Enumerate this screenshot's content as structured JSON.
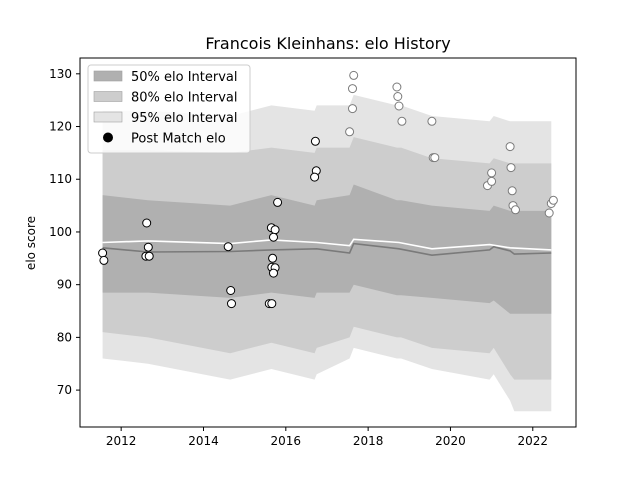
{
  "chart_data": {
    "type": "line",
    "title": "Francois Kleinhans: elo History",
    "xlabel": "",
    "ylabel": "elo score",
    "xlim": [
      2011.0,
      2023.05
    ],
    "ylim": [
      63,
      133
    ],
    "xticks": [
      2012,
      2014,
      2016,
      2018,
      2020,
      2022
    ],
    "yticks": [
      70,
      80,
      90,
      100,
      110,
      120,
      130
    ],
    "grid": false,
    "legend_position": "top-left",
    "legend": [
      {
        "label": "50% elo Interval",
        "kind": "band",
        "color": "#b0b0b0"
      },
      {
        "label": "80% elo Interval",
        "kind": "band",
        "color": "#cdcdcd"
      },
      {
        "label": "95% elo Interval",
        "kind": "band",
        "color": "#e4e4e4"
      },
      {
        "label": "Post Match elo",
        "kind": "marker",
        "color": "#000000"
      }
    ],
    "bands": {
      "x": [
        2011.55,
        2012.65,
        2014.65,
        2015.65,
        2016.7,
        2016.75,
        2017.55,
        2017.65,
        2018.7,
        2018.8,
        2019.55,
        2020.95,
        2021.05,
        2021.45,
        2021.55,
        2022.45
      ],
      "p95_low": [
        76,
        75,
        72,
        74,
        72,
        73,
        76,
        78,
        76,
        76,
        74,
        72,
        73,
        68,
        66,
        66
      ],
      "p80_low": [
        81,
        80,
        77,
        79,
        77,
        78,
        80,
        82,
        80,
        80,
        78,
        77,
        78,
        73,
        72,
        72
      ],
      "p50_low": [
        88.5,
        88.5,
        87.5,
        88.5,
        87.5,
        88.5,
        88.5,
        90,
        88,
        88,
        87.5,
        86.5,
        87,
        84.5,
        84.5,
        84.5
      ],
      "p50_high": [
        107,
        106,
        105,
        107,
        105,
        106,
        107,
        109,
        106,
        106,
        105,
        104,
        105,
        104,
        104,
        104
      ],
      "p80_high": [
        115.5,
        115.5,
        115,
        116,
        115,
        116,
        116,
        118,
        116,
        116,
        114,
        113,
        114,
        113,
        113,
        113
      ],
      "p95_high": [
        123,
        123,
        122,
        124,
        123,
        124,
        124,
        126,
        124,
        124,
        122,
        121,
        122,
        121,
        121,
        121
      ]
    },
    "series": [
      {
        "name": "",
        "color": "#ffffff",
        "x": [
          2011.55,
          2012.65,
          2014.65,
          2015.65,
          2016.75,
          2017.55,
          2017.65,
          2018.75,
          2019.55,
          2020.95,
          2021.45,
          2022.45
        ],
        "y": [
          98.0,
          98.3,
          97.8,
          98.5,
          98.0,
          97.4,
          98.6,
          98.0,
          96.8,
          97.6,
          97.0,
          96.6
        ]
      },
      {
        "name": "",
        "color": "#7a7a7a",
        "x": [
          2011.55,
          2012.65,
          2014.65,
          2015.65,
          2016.75,
          2017.55,
          2017.65,
          2018.75,
          2019.55,
          2020.95,
          2021.05,
          2021.45,
          2021.55,
          2022.45
        ],
        "y": [
          97.0,
          96.2,
          96.3,
          96.6,
          96.8,
          96.0,
          97.8,
          96.8,
          95.6,
          96.6,
          97.2,
          96.4,
          95.8,
          96.0
        ]
      }
    ],
    "points_filled": [
      {
        "x": 2011.55,
        "y": 96.0
      },
      {
        "x": 2011.58,
        "y": 94.6
      },
      {
        "x": 2012.62,
        "y": 101.7
      },
      {
        "x": 2012.66,
        "y": 97.1
      },
      {
        "x": 2012.6,
        "y": 95.4
      },
      {
        "x": 2012.68,
        "y": 95.4
      },
      {
        "x": 2014.6,
        "y": 97.2
      },
      {
        "x": 2014.66,
        "y": 88.9
      },
      {
        "x": 2014.68,
        "y": 86.4
      },
      {
        "x": 2015.6,
        "y": 86.4
      },
      {
        "x": 2015.66,
        "y": 86.4
      },
      {
        "x": 2015.65,
        "y": 100.8
      },
      {
        "x": 2015.74,
        "y": 100.4
      },
      {
        "x": 2015.7,
        "y": 99.0
      },
      {
        "x": 2015.68,
        "y": 95.0
      },
      {
        "x": 2015.66,
        "y": 93.3
      },
      {
        "x": 2015.74,
        "y": 93.2
      },
      {
        "x": 2015.7,
        "y": 92.2
      },
      {
        "x": 2015.8,
        "y": 105.6
      },
      {
        "x": 2016.72,
        "y": 117.2
      },
      {
        "x": 2016.74,
        "y": 111.6
      },
      {
        "x": 2016.7,
        "y": 110.4
      }
    ],
    "points_hollow": [
      {
        "x": 2017.55,
        "y": 119.0
      },
      {
        "x": 2017.62,
        "y": 123.4
      },
      {
        "x": 2017.62,
        "y": 127.2
      },
      {
        "x": 2017.65,
        "y": 129.7
      },
      {
        "x": 2018.7,
        "y": 127.5
      },
      {
        "x": 2018.72,
        "y": 125.7
      },
      {
        "x": 2018.75,
        "y": 123.9
      },
      {
        "x": 2018.82,
        "y": 121.0
      },
      {
        "x": 2019.55,
        "y": 121.0
      },
      {
        "x": 2019.58,
        "y": 114.1
      },
      {
        "x": 2019.62,
        "y": 114.1
      },
      {
        "x": 2020.9,
        "y": 108.8
      },
      {
        "x": 2021.0,
        "y": 111.2
      },
      {
        "x": 2021.0,
        "y": 109.6
      },
      {
        "x": 2021.45,
        "y": 116.2
      },
      {
        "x": 2021.47,
        "y": 112.2
      },
      {
        "x": 2021.5,
        "y": 107.8
      },
      {
        "x": 2021.52,
        "y": 105.0
      },
      {
        "x": 2021.58,
        "y": 104.2
      },
      {
        "x": 2022.4,
        "y": 103.6
      },
      {
        "x": 2022.45,
        "y": 105.4
      },
      {
        "x": 2022.5,
        "y": 106.0
      }
    ]
  }
}
